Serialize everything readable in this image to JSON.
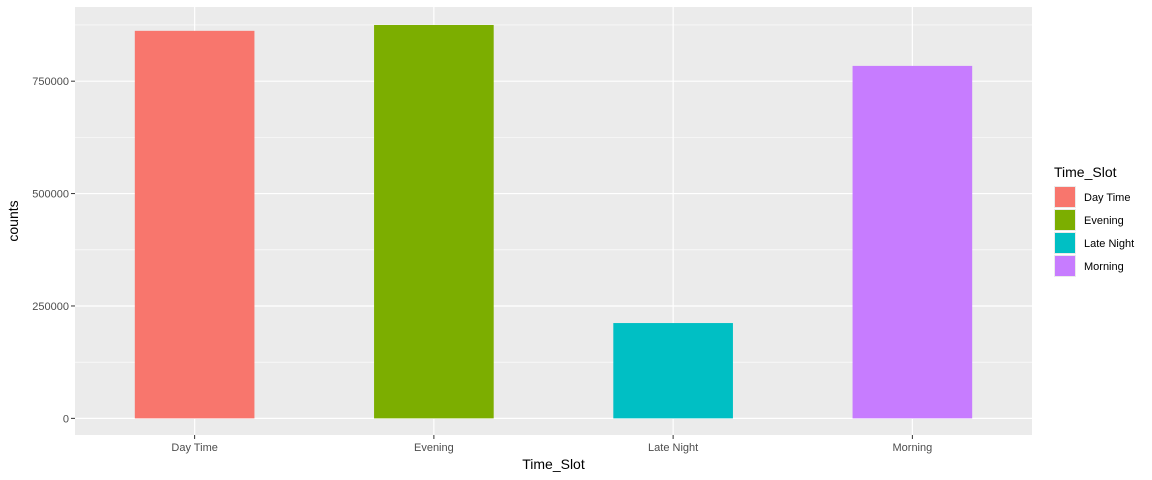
{
  "chart_data": {
    "type": "bar",
    "categories": [
      "Day Time",
      "Evening",
      "Late Night",
      "Morning"
    ],
    "values": [
      862000,
      875000,
      212000,
      784000
    ],
    "colors": [
      "#F8766D",
      "#7CAE00",
      "#00BFC4",
      "#C77CFF"
    ],
    "xlabel": "Time_Slot",
    "ylabel": "counts",
    "ylim": [
      -37000,
      915000
    ],
    "yticks": [
      0,
      250000,
      500000,
      750000
    ],
    "ytick_labels": [
      "0",
      "250000",
      "500000",
      "750000"
    ],
    "grid": true,
    "legend": {
      "title": "Time_Slot",
      "position": "right",
      "entries": [
        "Day Time",
        "Evening",
        "Late Night",
        "Morning"
      ]
    },
    "panel_background": "#EBEBEB"
  }
}
